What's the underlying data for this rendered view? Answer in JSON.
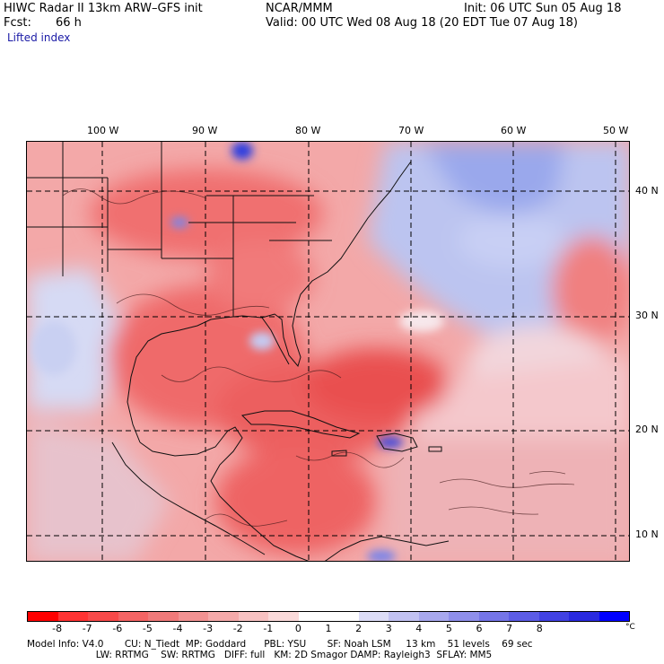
{
  "header": {
    "model_title": "HIWC Radar II 13km ARW–GFS init",
    "org": "NCAR/MMM",
    "init": "Init: 06 UTC Sun 05 Aug 18",
    "fcst_label": "Fcst:",
    "fcst_hours": "66 h",
    "valid": "Valid: 00 UTC Wed 08 Aug 18 (20 EDT Tue 07 Aug 18)",
    "field": "Lifted index"
  },
  "map": {
    "longitude_labels": [
      "100 W",
      "90 W",
      "80 W",
      "70 W",
      "60 W",
      "50 W"
    ],
    "latitude_labels": [
      "40 N",
      "30 N",
      "20 N",
      "10 N"
    ]
  },
  "colorbar": {
    "colors": [
      "#ff0000",
      "#ff3333",
      "#f84a4a",
      "#f46464",
      "#f07a7a",
      "#f29292",
      "#f5aaaa",
      "#f8c2c2",
      "#fbdada",
      "#ffffff",
      "#ffffff",
      "#dcdcf7",
      "#c2c2f2",
      "#a8a8ee",
      "#8f8feb",
      "#7575e8",
      "#5c5ce6",
      "#4242e3",
      "#2a2ae0",
      "#0000ff"
    ],
    "ticks": [
      "-8",
      "-7",
      "-6",
      "-5",
      "-4",
      "-3",
      "-2",
      "-1",
      "0",
      "1",
      "2",
      "3",
      "4",
      "5",
      "6",
      "7",
      "8"
    ],
    "unit": "°C",
    "accent_warm": "#f0605a",
    "accent_cool": "#6e6ee8"
  },
  "footer": {
    "line1": "Model Info: V4.0       CU: N_Tiedt  MP: Goddard      PBL: YSU       SF: Noah LSM     13 km    51 levels    69 sec",
    "line2": "                       LW: RRTMG    SW: RRTMG   DIFF: full   KM: 2D Smagor DAMP: Rayleigh3  SFLAY: MM5"
  }
}
